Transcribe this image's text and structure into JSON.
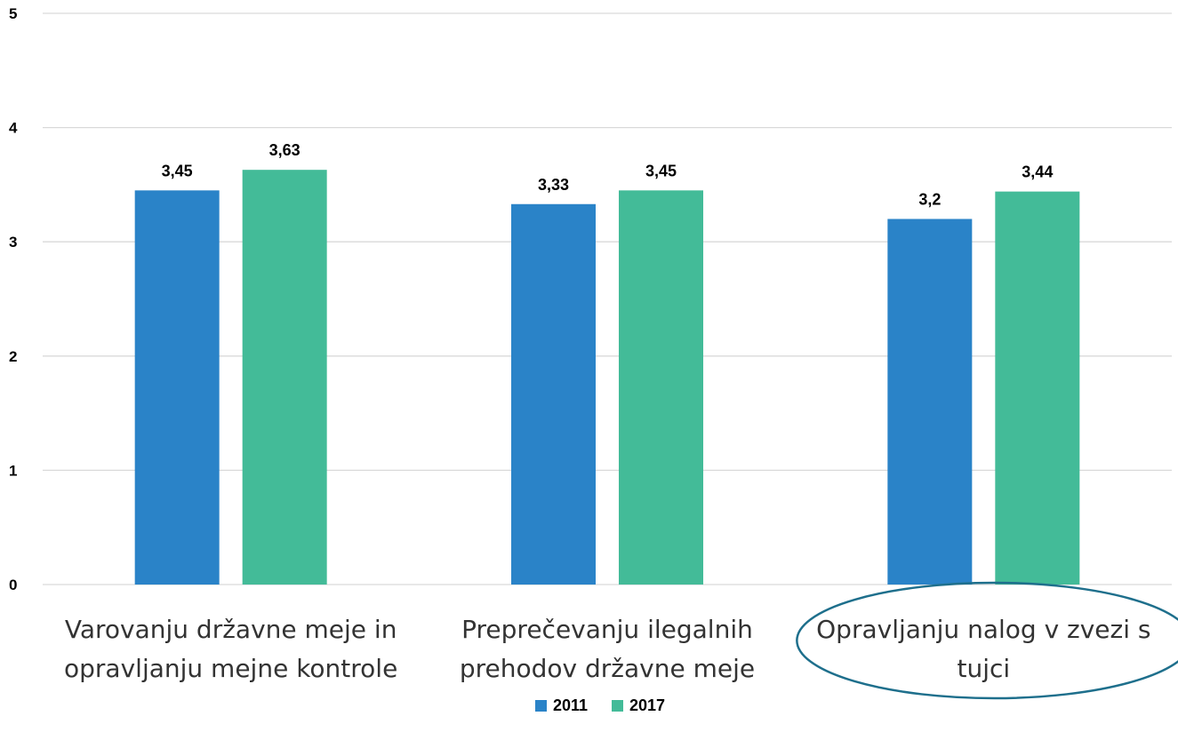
{
  "chart_data": {
    "type": "bar",
    "categories": [
      [
        "Varovanju državne meje in",
        "opravljanju mejne kontrole"
      ],
      [
        "Preprečevanju ilegalnih",
        "prehodov državne meje"
      ],
      [
        "Opravljanju nalog v zvezi s",
        "tujci"
      ]
    ],
    "series": [
      {
        "name": "2011",
        "values": [
          3.45,
          3.33,
          3.2
        ],
        "labels": [
          "3,45",
          "3,33",
          "3,2"
        ],
        "color": "#2a83c8"
      },
      {
        "name": "2017",
        "values": [
          3.63,
          3.45,
          3.44
        ],
        "labels": [
          "3,63",
          "3,45",
          "3,44"
        ],
        "color": "#43bb98"
      }
    ],
    "ylim": [
      0,
      5
    ],
    "yticks": [
      "0",
      "1",
      "2",
      "3",
      "4",
      "5"
    ],
    "grid": true,
    "legend_position": "bottom-center",
    "highlighted_category": 2,
    "highlight_color": "#1e6f8c",
    "gridline_color": "#d9d9d9"
  }
}
